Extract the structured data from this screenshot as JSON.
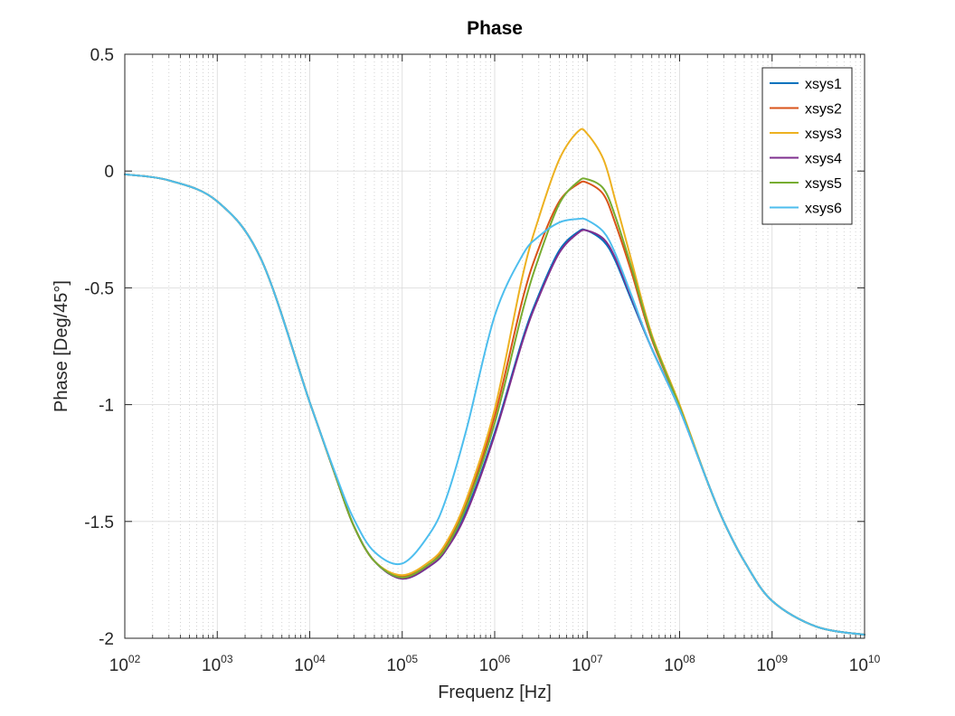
{
  "chart_data": {
    "type": "line",
    "title": "Phase",
    "xlabel": "Frequenz [Hz]",
    "ylabel": "Phase [Deg/45°]",
    "xscale": "log",
    "xlim": [
      100,
      10000000000
    ],
    "ylim": [
      -2,
      0.5
    ],
    "x_ticks": [
      {
        "base": "10",
        "exp": "02",
        "value": 100
      },
      {
        "base": "10",
        "exp": "03",
        "value": 1000
      },
      {
        "base": "10",
        "exp": "04",
        "value": 10000
      },
      {
        "base": "10",
        "exp": "05",
        "value": 100000
      },
      {
        "base": "10",
        "exp": "06",
        "value": 1000000
      },
      {
        "base": "10",
        "exp": "07",
        "value": 10000000
      },
      {
        "base": "10",
        "exp": "08",
        "value": 100000000
      },
      {
        "base": "10",
        "exp": "09",
        "value": 1000000000
      },
      {
        "base": "10",
        "exp": "10",
        "value": 10000000000
      }
    ],
    "y_ticks": [
      "0.5",
      "0",
      "-0.5",
      "-1",
      "-1.5",
      "-2"
    ],
    "y_tick_values": [
      0.5,
      0,
      -0.5,
      -1,
      -1.5,
      -2
    ],
    "grid": true,
    "minor_grid_x": true,
    "legend_position": "top-right",
    "x": [
      100,
      300,
      1000,
      3000,
      10000,
      20000,
      30000,
      50000,
      100000,
      200000,
      300000,
      500000,
      1000000,
      2000000,
      3000000,
      5000000,
      8000000,
      10000000,
      15000000,
      20000000,
      30000000,
      50000000,
      100000000,
      200000000,
      300000000,
      500000000,
      1000000000,
      3000000000,
      10000000000
    ],
    "series": [
      {
        "name": "xsys1",
        "color": "#0072bd",
        "values": [
          -0.014,
          -0.04,
          -0.13,
          -0.38,
          -0.99,
          -1.33,
          -1.52,
          -1.67,
          -1.745,
          -1.69,
          -1.62,
          -1.45,
          -1.12,
          -0.72,
          -0.53,
          -0.34,
          -0.26,
          -0.255,
          -0.3,
          -0.38,
          -0.55,
          -0.76,
          -1.02,
          -1.33,
          -1.5,
          -1.67,
          -1.84,
          -1.95,
          -1.985
        ]
      },
      {
        "name": "xsys2",
        "color": "#d95319",
        "values": [
          -0.014,
          -0.04,
          -0.13,
          -0.38,
          -0.99,
          -1.33,
          -1.52,
          -1.67,
          -1.735,
          -1.68,
          -1.6,
          -1.42,
          -1.05,
          -0.55,
          -0.33,
          -0.13,
          -0.055,
          -0.05,
          -0.1,
          -0.22,
          -0.43,
          -0.72,
          -1.01,
          -1.33,
          -1.5,
          -1.67,
          -1.84,
          -1.95,
          -1.985
        ]
      },
      {
        "name": "xsys3",
        "color": "#edb120",
        "values": [
          -0.014,
          -0.04,
          -0.13,
          -0.38,
          -0.99,
          -1.33,
          -1.52,
          -1.67,
          -1.73,
          -1.67,
          -1.59,
          -1.4,
          -1.02,
          -0.45,
          -0.2,
          0.05,
          0.17,
          0.16,
          0.05,
          -0.12,
          -0.38,
          -0.7,
          -1.0,
          -1.33,
          -1.5,
          -1.67,
          -1.84,
          -1.95,
          -1.985
        ]
      },
      {
        "name": "xsys4",
        "color": "#7e2f8e",
        "values": [
          -0.014,
          -0.04,
          -0.13,
          -0.38,
          -0.99,
          -1.33,
          -1.52,
          -1.67,
          -1.745,
          -1.69,
          -1.62,
          -1.46,
          -1.13,
          -0.73,
          -0.54,
          -0.35,
          -0.265,
          -0.255,
          -0.29,
          -0.37,
          -0.54,
          -0.76,
          -1.02,
          -1.33,
          -1.5,
          -1.67,
          -1.84,
          -1.95,
          -1.985
        ]
      },
      {
        "name": "xsys5",
        "color": "#77ac30",
        "values": [
          -0.014,
          -0.04,
          -0.13,
          -0.38,
          -0.99,
          -1.33,
          -1.52,
          -1.67,
          -1.74,
          -1.68,
          -1.61,
          -1.43,
          -1.08,
          -0.6,
          -0.37,
          -0.14,
          -0.045,
          -0.035,
          -0.075,
          -0.19,
          -0.41,
          -0.71,
          -1.01,
          -1.33,
          -1.5,
          -1.67,
          -1.84,
          -1.95,
          -1.985
        ]
      },
      {
        "name": "xsys6",
        "color": "#4dbeee",
        "values": [
          -0.014,
          -0.04,
          -0.13,
          -0.38,
          -0.99,
          -1.32,
          -1.49,
          -1.63,
          -1.68,
          -1.55,
          -1.4,
          -1.1,
          -0.62,
          -0.36,
          -0.28,
          -0.22,
          -0.205,
          -0.21,
          -0.26,
          -0.35,
          -0.53,
          -0.76,
          -1.02,
          -1.33,
          -1.5,
          -1.67,
          -1.84,
          -1.95,
          -1.985
        ]
      }
    ]
  }
}
